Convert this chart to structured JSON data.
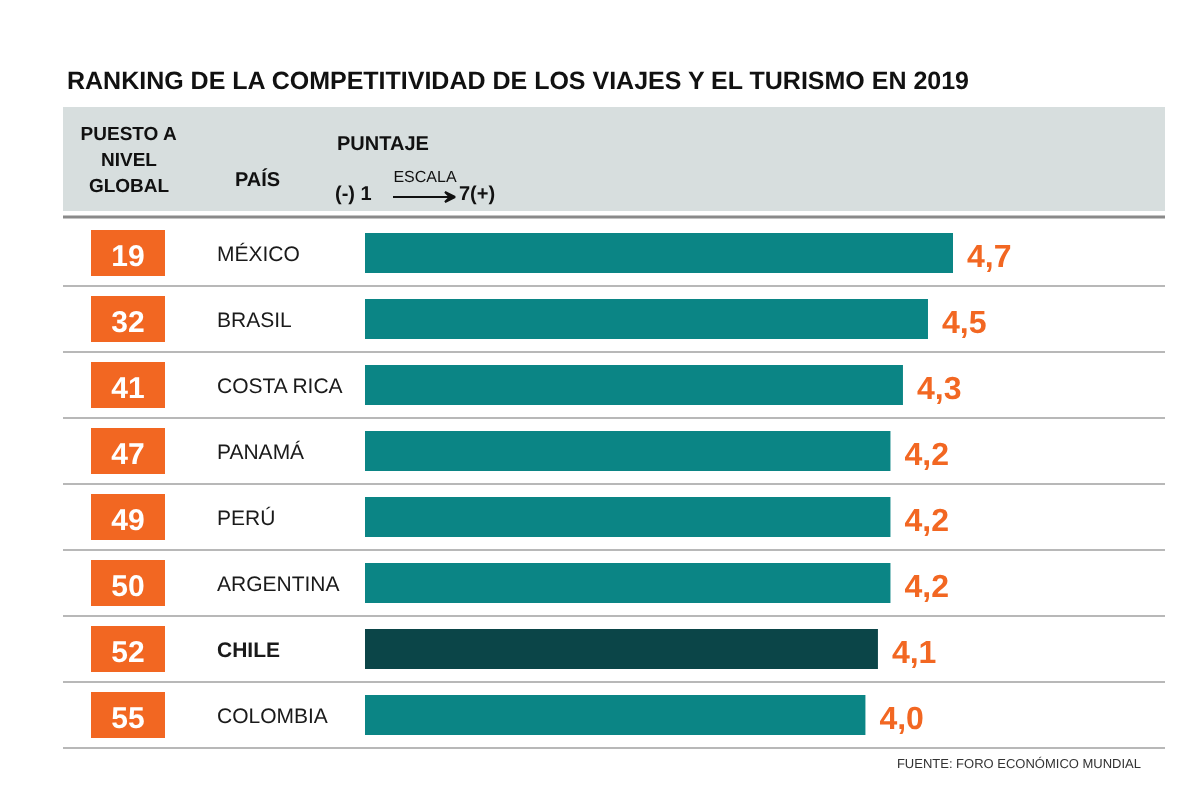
{
  "chart_data": {
    "type": "bar",
    "orientation": "horizontal",
    "title": "RANKING DE LA COMPETITIVIDAD DE LOS VIAJES Y EL TURISMO EN 2019",
    "ylabel": "PAÍS",
    "xlabel": "PUNTAJE",
    "categories": [
      "MÉXICO",
      "BRASIL",
      "COSTA RICA",
      "PANAMÁ",
      "PERÚ",
      "ARGENTINA",
      "CHILE",
      "COLOMBIA"
    ],
    "values": [
      4.7,
      4.5,
      4.3,
      4.2,
      4.2,
      4.2,
      4.1,
      4.0
    ],
    "colors": [
      "#0b8585",
      "#0b8585",
      "#0b8585",
      "#0b8585",
      "#0b8585",
      "#0b8585",
      "#0b4548",
      "#0b8585"
    ],
    "value_labels": [
      "4,7",
      "4,5",
      "4,3",
      "4,2",
      "4,2",
      "4,2",
      "4,1",
      "4,0"
    ],
    "annotations": [
      "PUESTO A\nNIVEL\nGLOBAL",
      "(-) 1",
      "ESCALA",
      "7(+)",
      "FUENTE: FORO ECONÓMICO MUNDIAL",
      "19",
      "32",
      "41",
      "47",
      "49",
      "50",
      "52",
      "55"
    ]
  }
}
